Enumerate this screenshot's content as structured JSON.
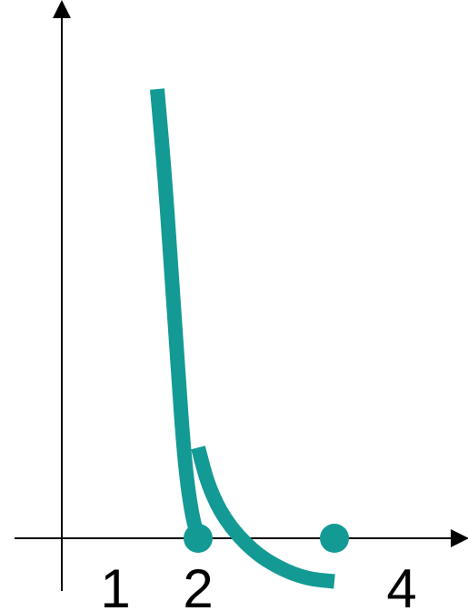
{
  "chart_data": {
    "type": "line",
    "title": "",
    "xlabel": "",
    "ylabel": "",
    "x_tick_labels": [
      "1",
      "2",
      "4"
    ],
    "x_ticks": [
      1,
      2,
      4
    ],
    "grid": false,
    "legend": "none",
    "series_color": "#149a94",
    "axis_color": "#000000",
    "series": [
      {
        "x": [
          1.4,
          1.5,
          1.6,
          1.7,
          1.8,
          1.9,
          2.0
        ],
        "y": [
          5.2,
          4.3,
          3.2,
          2.0,
          0.9,
          0.3,
          0.0
        ]
      },
      {
        "x": [
          2.0,
          2.15,
          2.4,
          2.8,
          3.2,
          3.6,
          4.0
        ],
        "y": [
          1.05,
          0.6,
          0.2,
          -0.15,
          -0.35,
          -0.47,
          -0.5
        ]
      }
    ],
    "points": [
      {
        "x": 2,
        "y": 0
      },
      {
        "x": 4,
        "y": 0
      }
    ]
  }
}
